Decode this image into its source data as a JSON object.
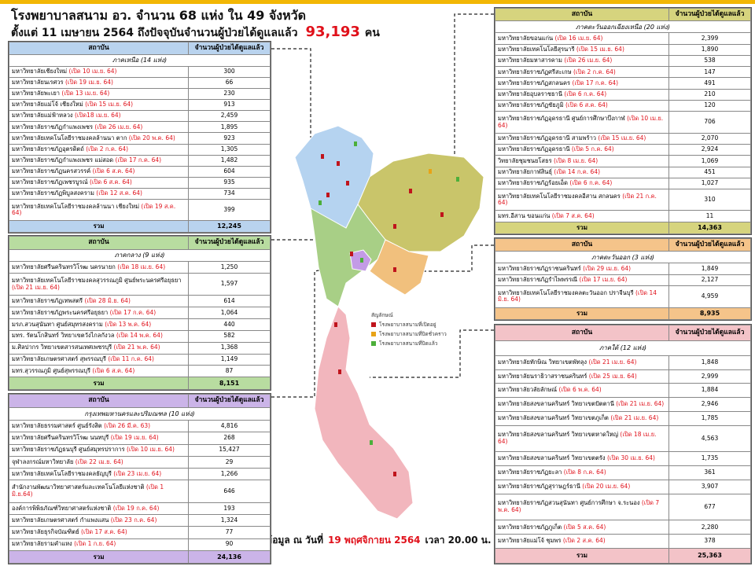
{
  "header": {
    "title": "โรงพยาบาลสนาม อว. จำนวน 68 แห่ง ใน 49 จังหวัด",
    "subtitle": "ตั้งแต่ 11 เมษายน 2564 ถึงปัจจุบันจำนวนผู้ป่วยได้ดูแลแล้ว",
    "total": "93,193",
    "unit": "คน"
  },
  "tables": [
    {
      "color": "#b9d3ee",
      "columns": [
        "สถาบัน",
        "จำนวนผู้ป่วยได้ดูแลแล้ว"
      ],
      "section": "ภาคเหนือ (14 แห่ง)",
      "rows": [
        {
          "name": "มหาวิทยาลัยเชียงใหม่",
          "opened": "(เปิด 10 เม.ย. 64)",
          "count": "300"
        },
        {
          "name": "มหาวิทยาลัยนเรศวร",
          "opened": "(เปิด 19 เม.ย. 64)",
          "count": "66"
        },
        {
          "name": "มหาวิทยาลัยพะเยา",
          "opened": "(เปิด 13 เม.ย. 64)",
          "count": "230"
        },
        {
          "name": "มหาวิทยาลัยแม่โจ้ เชียงใหม่",
          "opened": "(เปิด 15 เม.ย. 64)",
          "count": "913"
        },
        {
          "name": "มหาวิทยาลัยแม่ฟ้าหลวง",
          "opened": "(เปิด18 เม.ย. 64)",
          "count": "2,459"
        },
        {
          "name": "มหาวิทยาลัยราชภัฏกำแพงเพชร",
          "opened": "(เปิด 26 เม.ย. 64)",
          "count": "1,895"
        },
        {
          "name": "มหาวิทยาลัยเทคโนโลยีราชมงคลล้านนา ตาก",
          "opened": "(เปิด 20 พ.ค. 64)",
          "count": "923"
        },
        {
          "name": "มหาวิทยาลัยราชภัฏอุตรดิตถ์",
          "opened": "(เปิด 2 ก.ค. 64)",
          "count": "1,305"
        },
        {
          "name": "มหาวิทยาลัยราชภัฏกำแพงเพชร แม่สอด",
          "opened": "(เปิด 17 ก.ค. 64)",
          "count": "1,482"
        },
        {
          "name": "มหาวิทยาลัยราชภัฏนครสวรรค์",
          "opened": "(เปิด 6 ส.ค. 64)",
          "count": "604"
        },
        {
          "name": "มหาวิทยาลัยราชภัฏเพชรบูรณ์",
          "opened": "(เปิด 6 ส.ค. 64)",
          "count": "935"
        },
        {
          "name": "มหาวิทยาลัยราชภัฏพิบูลสงคราม",
          "opened": "(เปิด 12 ส.ค. 64)",
          "count": "734"
        },
        {
          "name": "มหาวิทยาลัยเทคโนโลยีราชมงคลล้านนา เชียงใหม่",
          "opened": "(เปิด 19 ส.ค. 64)",
          "count": "399"
        }
      ],
      "total_label": "รวม",
      "total": "12,245"
    },
    {
      "color": "#b8dca0",
      "columns": [
        "สถาบัน",
        "จำนวนผู้ป่วยได้ดูแลแล้ว"
      ],
      "section": "ภาคกลาง (9 แห่ง)",
      "rows": [
        {
          "name": "มหาวิทยาลัยศรีนครินทรวิโรฒ นครนายก",
          "opened": "(เปิด 18 เม.ย. 64)",
          "count": "1,250"
        },
        {
          "name": "มหาวิทยาลัยเทคโนโลยีราชมงคลสุวรรณภูมิ ศูนย์พระนครศรีอยุธยา",
          "opened": "(เปิด 21 เม.ย. 64)",
          "count": "1,597"
        },
        {
          "name": "มหาวิทยาลัยราชภัฏเทพสตรี",
          "opened": "(เปิด 28 มิ.ย. 64)",
          "count": "614"
        },
        {
          "name": "มหาวิทยาลัยราชภัฏพระนครศรีอยุธยา",
          "opened": "(เปิด 17 ก.ค. 64)",
          "count": "1,064"
        },
        {
          "name": "มรภ.สวนสุนันทา ศูนย์สมุทรสงคราม",
          "opened": "(เปิด 13 พ.ค. 64)",
          "count": "440"
        },
        {
          "name": "มทร. รัตนโกสินทร์ วิทยาเขตวังไกลกังวล",
          "opened": "(เปิด 14 พ.ค. 64)",
          "count": "582"
        },
        {
          "name": "ม.ศิลปากร วิทยาเขตสารสนเทศเพชรบุรี",
          "opened": "(เปิด 21 พ.ค. 64)",
          "count": "1,368"
        },
        {
          "name": "มหาวิทยาลัยเกษตรศาสตร์ สุพรรณบุรี",
          "opened": "(เปิด 11 ก.ค. 64)",
          "count": "1,149"
        },
        {
          "name": "มทร.สุวรรณภูมิ ศูนย์สุพรรณบุรี",
          "opened": "(เปิด 6 ส.ค. 64)",
          "count": "87"
        }
      ],
      "total_label": "รวม",
      "total": "8,151"
    },
    {
      "color": "#cbb4e8",
      "columns": [
        "สถาบัน",
        "จำนวนผู้ป่วยได้ดูแลแล้ว"
      ],
      "section": "กรุงเทพมหานครและปริมณฑล (10 แห่ง)",
      "rows": [
        {
          "name": "มหาวิทยาลัยธรรมศาสตร์ ศูนย์รังสิต",
          "opened": "(เปิด 26 มี.ค. 63)",
          "count": "4,816"
        },
        {
          "name": "มหาวิทยาลัยศรีนครินทรวิโรฒ นนทบุรี",
          "opened": "(เปิด 19 เม.ย. 64)",
          "count": "268"
        },
        {
          "name": "มหาวิทยาลัยราชภัฏธนบุรี ศูนย์สมุทรปราการ",
          "opened": "(เปิด 10 เม.ย. 64)",
          "count": "15,427"
        },
        {
          "name": "จุฬาลงกรณ์มหาวิทยาลัย",
          "opened": "(เปิด 22 เม.ย. 64)",
          "count": "29"
        },
        {
          "name": "มหาวิทยาลัยเทคโนโลยีราชมงคลธัญบุรี",
          "opened": "(เปิด 23 เม.ย. 64)",
          "count": "1,266"
        },
        {
          "name": "สำนักงานพัฒนาวิทยาศาสตร์และเทคโนโลยีแห่งชาติ",
          "opened": "(เปิด 1 มิ.ย.64)",
          "count": "646"
        },
        {
          "name": "องค์การพิพิธภัณฑ์วิทยาศาสตร์แห่งชาติ",
          "opened": "(เปิด 19 ก.ค. 64)",
          "count": "193"
        },
        {
          "name": "มหาวิทยาลัยเกษตรศาสตร์ กำแพงแสน",
          "opened": "(เปิด 23 ก.ค. 64)",
          "count": "1,324"
        },
        {
          "name": "มหาวิทยาลัยธุรกิจบัณฑิตย์",
          "opened": "(เปิด 17 ส.ค. 64)",
          "count": "77"
        },
        {
          "name": "มหาวิทยาลัยรามคำแหง",
          "opened": "(เปิด 1 ก.ย. 64)",
          "count": "90"
        }
      ],
      "total_label": "รวม",
      "total": "24,136"
    },
    {
      "color": "#d6d47e",
      "columns": [
        "สถาบัน",
        "จำนวนผู้ป่วยได้ดูแลแล้ว"
      ],
      "section": "ภาคตะวันออกเฉียงเหนือ (20 แห่ง)",
      "rows": [
        {
          "name": "มหาวิทยาลัยขอนแก่น",
          "opened": "(เปิด 16 เม.ย. 64)",
          "count": "2,399"
        },
        {
          "name": "มหาวิทยาลัยเทคโนโลยีสุรนารี",
          "opened": "(เปิด 15 เม.ย. 64)",
          "count": "1,890"
        },
        {
          "name": "มหาวิทยาลัยมหาสารคาม",
          "opened": "(เปิด 26 เม.ย. 64)",
          "count": "538"
        },
        {
          "name": "มหาวิทยาลัยราชภัฏศรีสะเกษ",
          "opened": "(เปิด 2 ก.ค. 64)",
          "count": "147"
        },
        {
          "name": "มหาวิทยาลัยราชภัฏสกลนคร",
          "opened": "(เปิด 17 ก.ค. 64)",
          "count": "491"
        },
        {
          "name": "มหาวิทยาลัยอุบลราชธานี",
          "opened": "(เปิด 6 ก.ค. 64)",
          "count": "210"
        },
        {
          "name": "มหาวิทยาลัยราชภัฏชัยภูมิ",
          "opened": "(เปิด 6 ส.ค. 64)",
          "count": "120"
        },
        {
          "name": "มหาวิทยาลัยราชภัฏอุดรธานี ศูนย์การศึกษาบึงกาฬ",
          "opened": "(เปิด 10 เม.ย. 64)",
          "count": "706"
        },
        {
          "name": "มหาวิทยาลัยราชภัฏอุดรธานี สามพร้าว",
          "opened": "(เปิด 15 เม.ย. 64)",
          "count": "2,070"
        },
        {
          "name": "มหาวิทยาลัยราชภัฏอุดรธานี",
          "opened": "(เปิด 5 ก.ค. 64)",
          "count": "2,924"
        },
        {
          "name": "วิทยาลัยชุมชนยโสธร",
          "opened": "(เปิด 8 เม.ย. 64)",
          "count": "1,069"
        },
        {
          "name": "มหาวิทยาลัยกาฬสินธุ์",
          "opened": "(เปิด 14 ก.ค. 64)",
          "count": "451"
        },
        {
          "name": "มหาวิทยาลัยราชภัฏร้อยเอ็ด",
          "opened": "(เปิด 6 ก.ค. 64)",
          "count": "1,027"
        },
        {
          "name": "มหาวิทยาลัยเทคโนโลยีราชมงคลอีสาน สกลนคร",
          "opened": "(เปิด 21 ก.ค. 64)",
          "count": "310"
        },
        {
          "name": "มทร.อีสาน ขอนแก่น",
          "opened": "(เปิด 7 ส.ค. 64)",
          "count": "11"
        }
      ],
      "total_label": "รวม",
      "total": "14,363"
    },
    {
      "color": "#f5c48a",
      "columns": [
        "สถาบัน",
        "จำนวนผู้ป่วยได้ดูแลแล้ว"
      ],
      "section": "ภาคตะวันออก (3 แห่ง)",
      "rows": [
        {
          "name": "มหาวิทยาลัยราชภัฏราชนครินทร์",
          "opened": "(เปิด 29 เม.ย. 64)",
          "count": "1,849"
        },
        {
          "name": "มหาวิทยาลัยราชภัฏรำไพพรรณี",
          "opened": "(เปิด 17 เม.ย. 64)",
          "count": "2,127"
        },
        {
          "name": "มหาวิทยาลัยเทคโนโลยีราชมงคลตะวันออก ปราจีนบุรี",
          "opened": "(เปิด 14 มิ.ย. 64)",
          "count": "4,959"
        }
      ],
      "total_label": "รวม",
      "total": "8,935"
    },
    {
      "color": "#f3c3c8",
      "columns": [
        "สถาบัน",
        "จำนวนผู้ป่วยได้ดูแลแล้ว"
      ],
      "section": "ภาคใต้ (12 แห่ง)",
      "rows": [
        {
          "name": "มหาวิทยาลัยทักษิณ วิทยาเขตพัทลุง",
          "opened": "(เปิด 21 เม.ย. 64)",
          "count": "1,848"
        },
        {
          "name": "มหาวิทยาลัยนราธิวาสราชนครินทร์",
          "opened": "(เปิด 25 เม.ย. 64)",
          "count": "2,999"
        },
        {
          "name": "มหาวิทยาลัยวลัยลักษณ์",
          "opened": "(เปิด 6 พ.ค. 64)",
          "count": "1,884"
        },
        {
          "name": "มหาวิทยาลัยสงขลานครินทร์ วิทยาเขตปัตตานี",
          "opened": "(เปิด 21 เม.ย. 64)",
          "count": "2,946"
        },
        {
          "name": "มหาวิทยาลัยสงขลานครินทร์ วิทยาเขตภูเก็ต",
          "opened": "(เปิด 21 เม.ย. 64)",
          "count": "1,785"
        },
        {
          "name": "มหาวิทยาลัยสงขลานครินทร์ วิทยาเขตหาดใหญ่",
          "opened": "(เปิด 18 เม.ย. 64)",
          "count": "4,563"
        },
        {
          "name": "มหาวิทยาลัยสงขลานครินทร์ วิทยาเขตตรัง",
          "opened": "(เปิด 30 เม.ย. 64)",
          "count": "1,735"
        },
        {
          "name": "มหาวิทยาลัยราชภัฏยะลา",
          "opened": "(เปิด 8 ก.ค. 64)",
          "count": "361"
        },
        {
          "name": "มหาวิทยาลัยราชภัฏสุราษฎร์ธานี",
          "opened": "(เปิด 20 เม.ย. 64)",
          "count": "3,907"
        },
        {
          "name": "มหาวิทยาลัยราชภัฏสวนสุนันทา ศูนย์การศึกษา จ.ระนอง",
          "opened": "(เปิด 7 พ.ค. 64)",
          "count": "677"
        },
        {
          "name": "มหาวิทยาลัยราชภัฏภูเก็ต",
          "opened": "(เปิด 5 ส.ค. 64)",
          "count": "2,280"
        },
        {
          "name": "มหาวิทยาลัยแม่โจ้ ชุมพร",
          "opened": "(เปิด 2 ส.ค. 64)",
          "count": "378"
        }
      ],
      "total_label": "รวม",
      "total": "25,363"
    }
  ],
  "legend": {
    "title": "สัญลักษณ์",
    "items": [
      {
        "label": "โรงพยาบาลสนามที่เปิดอยู่",
        "color": "#c0141c"
      },
      {
        "label": "โรงพยาบาลสนามที่ปิดชั่วคราว",
        "color": "#e8a317"
      },
      {
        "label": "โรงพยาบาลสนามที่ปิดแล้ว",
        "color": "#4caf3a"
      }
    ]
  },
  "footer": {
    "prefix": "ข้อมูล ณ วันที่",
    "date": "19 พฤศจิกายน 2564",
    "time": "เวลา 20.00 น."
  }
}
